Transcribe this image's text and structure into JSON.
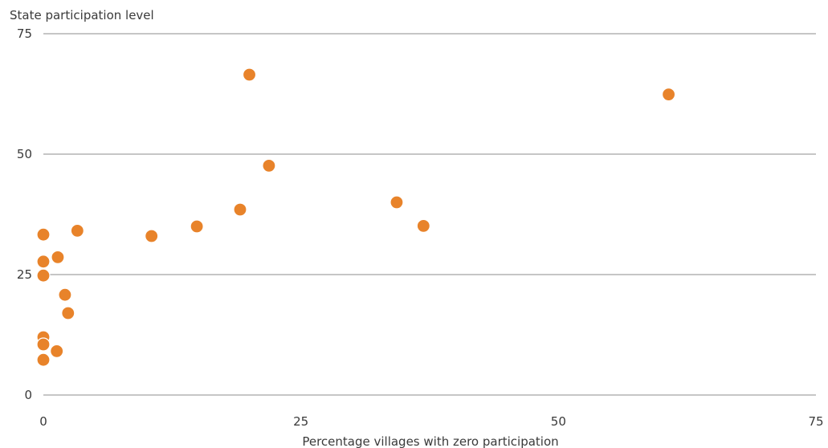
{
  "chart_data": {
    "type": "scatter",
    "title": "",
    "ylabel": "State participation level",
    "xlabel": "Percentage villages with zero participation",
    "xlim": [
      0,
      75
    ],
    "ylim": [
      0,
      75
    ],
    "x_ticks": [
      "0",
      "25",
      "50",
      "75"
    ],
    "y_ticks": [
      "0",
      "25",
      "50",
      "75"
    ],
    "grid": "horizontal",
    "marker_color": "#E8832A",
    "series": [
      {
        "points": [
          {
            "x": 0,
            "y": 33.3
          },
          {
            "x": 0,
            "y": 27.7
          },
          {
            "x": 0,
            "y": 24.8
          },
          {
            "x": 0,
            "y": 12.0
          },
          {
            "x": 0,
            "y": 10.5
          },
          {
            "x": 0,
            "y": 7.3
          },
          {
            "x": 1.3,
            "y": 9.1
          },
          {
            "x": 1.4,
            "y": 28.6
          },
          {
            "x": 2.1,
            "y": 20.8
          },
          {
            "x": 2.4,
            "y": 17.0
          },
          {
            "x": 3.3,
            "y": 34.1
          },
          {
            "x": 10.5,
            "y": 33.0
          },
          {
            "x": 14.9,
            "y": 35.0
          },
          {
            "x": 19.1,
            "y": 38.5
          },
          {
            "x": 20.0,
            "y": 66.5
          },
          {
            "x": 21.9,
            "y": 47.6
          },
          {
            "x": 34.3,
            "y": 40.0
          },
          {
            "x": 36.9,
            "y": 35.1
          },
          {
            "x": 60.7,
            "y": 62.4
          }
        ]
      }
    ]
  }
}
